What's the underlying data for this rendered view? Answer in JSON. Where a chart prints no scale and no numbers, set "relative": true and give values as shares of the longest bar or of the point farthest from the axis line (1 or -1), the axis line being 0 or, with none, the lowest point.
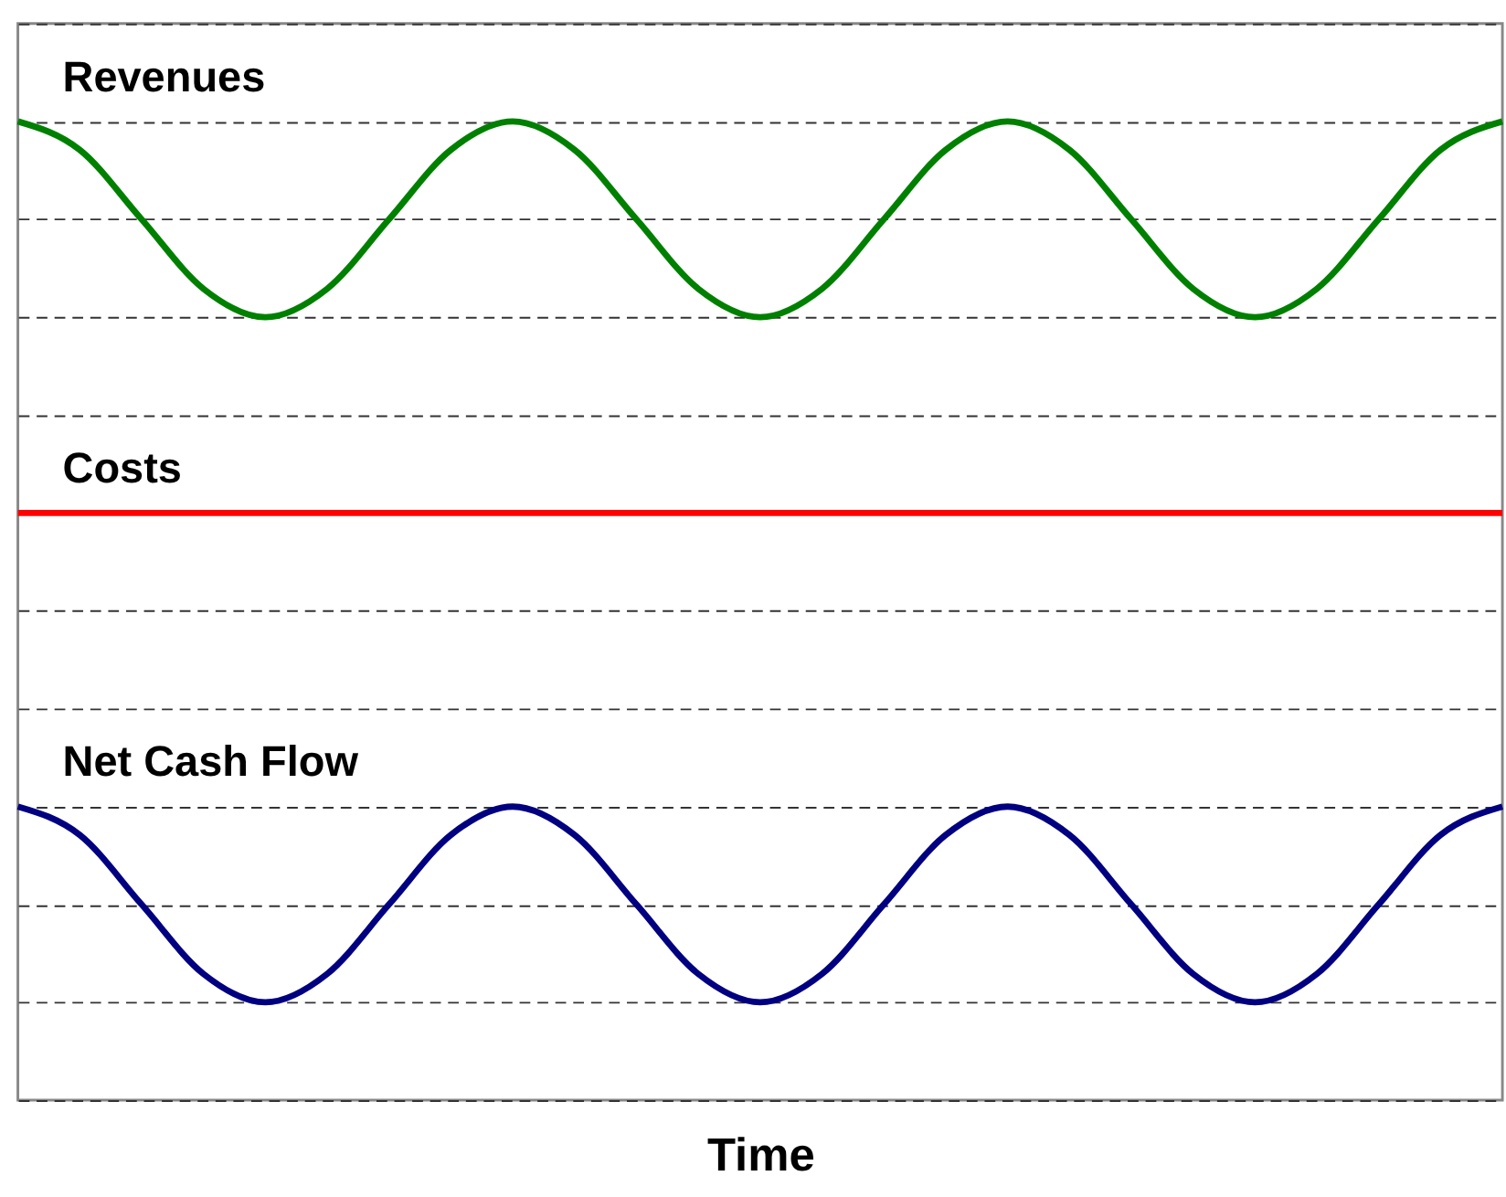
{
  "chart_data": {
    "type": "line",
    "xlabel": "Time",
    "relative": true,
    "grid": "y",
    "legend": false,
    "marker": "none",
    "line_style": "solid",
    "categories": [
      null,
      null,
      null,
      null,
      null,
      null,
      null,
      null,
      null,
      null,
      null,
      null,
      null,
      null,
      null,
      null,
      null,
      null,
      null,
      null,
      null,
      null,
      null,
      null,
      null
    ],
    "series": [
      {
        "name": "Revenues",
        "color": "#008000",
        "values": [
          1,
          0.971,
          0.9,
          0.829,
          0.8,
          0.829,
          0.9,
          0.971,
          1,
          0.971,
          0.9,
          0.829,
          0.8,
          0.829,
          0.9,
          0.971,
          1,
          0.971,
          0.9,
          0.829,
          0.8,
          0.829,
          0.9,
          0.971,
          1
        ]
      },
      {
        "name": "Costs",
        "color": "#ff0000",
        "values": [
          0.6,
          0.6,
          0.6,
          0.6,
          0.6,
          0.6,
          0.6,
          0.6,
          0.6,
          0.6,
          0.6,
          0.6,
          0.6,
          0.6,
          0.6,
          0.6,
          0.6,
          0.6,
          0.6,
          0.6,
          0.6,
          0.6,
          0.6,
          0.6,
          0.6
        ]
      },
      {
        "name": "Net Cash Flow",
        "color": "#000080",
        "values": [
          0.3,
          0.271,
          0.2,
          0.129,
          0.1,
          0.129,
          0.2,
          0.271,
          0.3,
          0.271,
          0.2,
          0.129,
          0.1,
          0.129,
          0.2,
          0.271,
          0.3,
          0.271,
          0.2,
          0.129,
          0.1,
          0.129,
          0.2,
          0.271,
          0.3
        ]
      }
    ]
  }
}
